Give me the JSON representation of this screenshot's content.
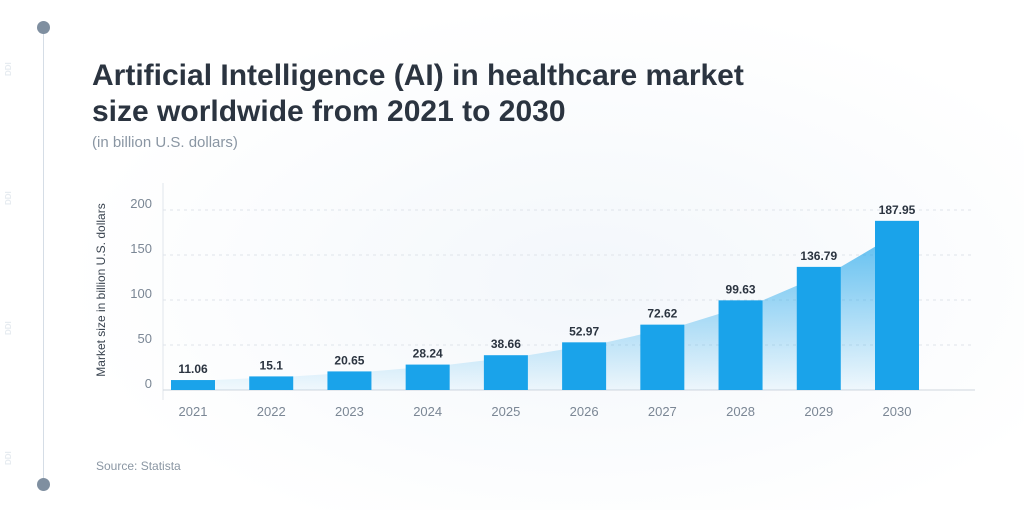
{
  "title": "Artificial Intelligence (AI) in healthcare market size worldwide from 2021 to 2030",
  "subtitle": "(in billion U.S. dollars)",
  "source": "Source: Statista",
  "watermark": "DDI",
  "colors": {
    "bar": "#1aa3ea",
    "area": "#7fc6ee",
    "title": "#2b3440",
    "muted": "#8a96a3"
  },
  "chart_data": {
    "type": "bar",
    "title": "Artificial Intelligence (AI) in healthcare market size worldwide from 2021 to 2030",
    "subtitle": "(in billion U.S. dollars)",
    "xlabel": "",
    "ylabel": "Market size in billion U.S. dollars",
    "categories": [
      "2021",
      "2022",
      "2023",
      "2024",
      "2025",
      "2026",
      "2027",
      "2028",
      "2029",
      "2030"
    ],
    "values": [
      11.06,
      15.1,
      20.65,
      28.24,
      38.66,
      52.97,
      72.62,
      99.63,
      136.79,
      187.95
    ],
    "value_labels": [
      "11.06",
      "15.1",
      "20.65",
      "28.24",
      "38.66",
      "52.97",
      "72.62",
      "99.63",
      "136.79",
      "187.95"
    ],
    "yticks": [
      0,
      50,
      100,
      150,
      200
    ],
    "ylim": [
      0,
      200
    ],
    "grid": true,
    "legend": "none"
  }
}
